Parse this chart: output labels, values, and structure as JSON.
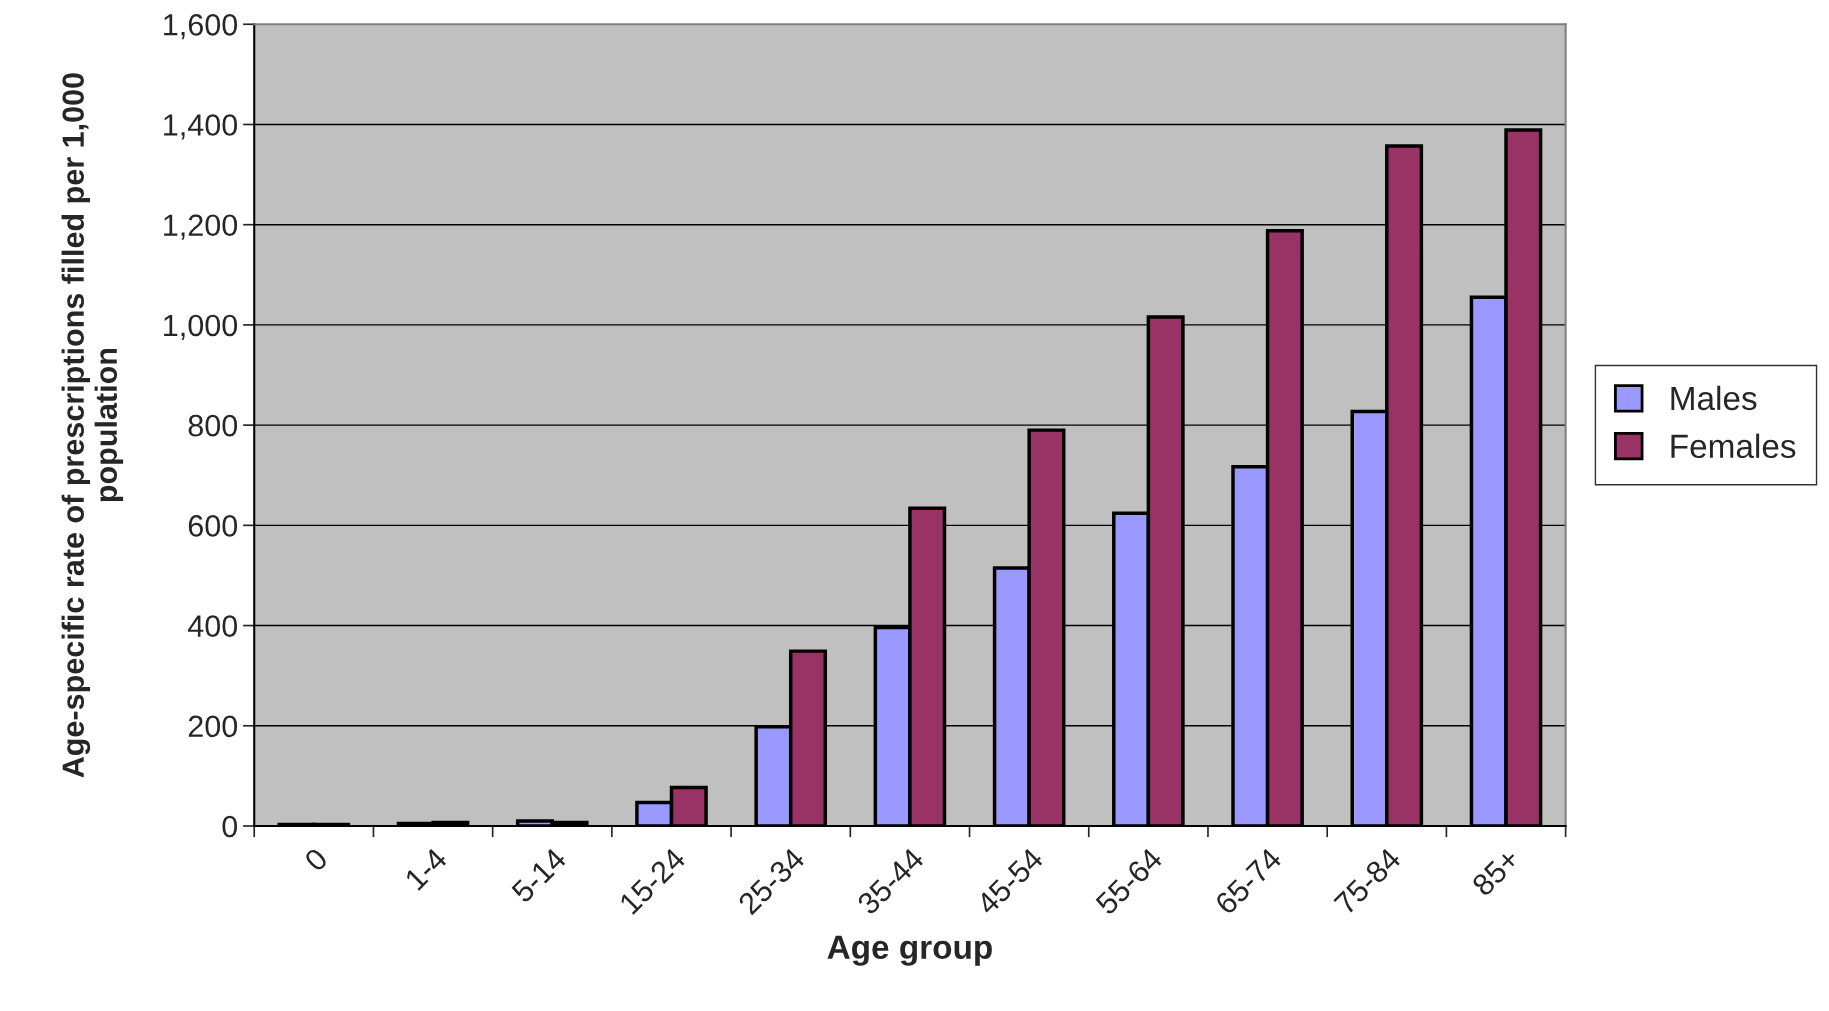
{
  "chart_data": {
    "type": "bar",
    "xlabel": "Age group",
    "ylabel": "Age-specific rate of prescriptions filled per 1,000 population",
    "categories": [
      "0",
      "1-4",
      "5-14",
      "15-24",
      "25-34",
      "35-44",
      "45-54",
      "55-64",
      "65-74",
      "75-84",
      "85+"
    ],
    "series": [
      {
        "name": "Males",
        "color": "#9999ff",
        "values": [
          3,
          5,
          10,
          47,
          198,
          396,
          515,
          624,
          717,
          827,
          1055
        ]
      },
      {
        "name": "Females",
        "color": "#993366",
        "values": [
          3,
          7,
          7,
          77,
          349,
          634,
          790,
          1016,
          1188,
          1357,
          1389
        ]
      }
    ],
    "ylim": [
      0,
      1600
    ],
    "yticks": [
      {
        "value": 0,
        "label": "0"
      },
      {
        "value": 200,
        "label": "200"
      },
      {
        "value": 400,
        "label": "400"
      },
      {
        "value": 600,
        "label": "600"
      },
      {
        "value": 800,
        "label": "800"
      },
      {
        "value": 1000,
        "label": "1,000"
      },
      {
        "value": 1200,
        "label": "1,200"
      },
      {
        "value": 1400,
        "label": "1,400"
      },
      {
        "value": 1600,
        "label": "1,600"
      }
    ],
    "grid": "y",
    "legend": "right"
  }
}
